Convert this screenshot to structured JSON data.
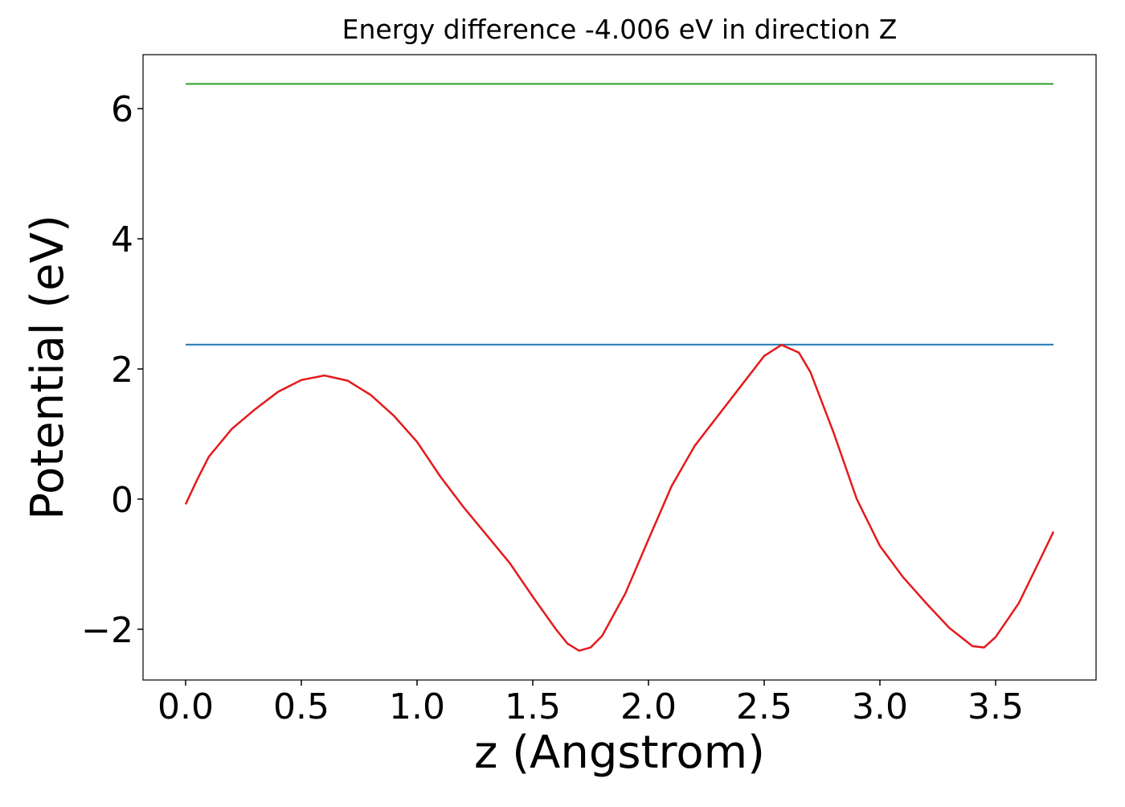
{
  "chart_data": {
    "type": "line",
    "title": "Energy difference -4.006 eV in direction Z",
    "x_label": "z (Angstrom)",
    "y_label": "Potential (eV)",
    "xlim": [
      -0.184,
      3.934
    ],
    "ylim": [
      -2.78,
      6.83
    ],
    "xticks": [
      {
        "value": 0,
        "label": "0.0"
      },
      0.5,
      {
        "value": 1,
        "label": "1.0"
      },
      1.5,
      {
        "value": 2,
        "label": "2.0"
      },
      2.5,
      {
        "value": 3,
        "label": "3.0"
      },
      3.5
    ],
    "yticks": [
      {
        "value": -2,
        "label": "−2"
      },
      0,
      2,
      4,
      6
    ],
    "series": [
      {
        "color": "#2ca02c",
        "x": [
          0,
          3.75
        ],
        "values": [
          6.38,
          6.38
        ]
      },
      {
        "color": "#1f77b4",
        "x": [
          0,
          3.75
        ],
        "values": [
          2.374,
          2.374
        ]
      },
      {
        "color": "#e41a1c",
        "x": [
          0,
          0.05,
          0.1,
          0.2,
          0.3,
          0.4,
          0.5,
          0.6,
          0.7,
          0.8,
          0.9,
          1.0,
          1.1,
          1.2,
          1.3,
          1.4,
          1.5,
          1.6,
          1.65,
          1.7,
          1.75,
          1.8,
          1.9,
          2.0,
          2.1,
          2.2,
          2.3,
          2.4,
          2.5,
          2.575,
          2.65,
          2.7,
          2.8,
          2.9,
          3.0,
          3.1,
          3.2,
          3.3,
          3.4,
          3.45,
          3.5,
          3.6,
          3.7,
          3.75
        ],
        "values": [
          -0.08,
          0.3,
          0.65,
          1.08,
          1.38,
          1.65,
          1.83,
          1.9,
          1.82,
          1.6,
          1.28,
          0.88,
          0.35,
          -0.12,
          -0.55,
          -0.98,
          -1.5,
          -2.0,
          -2.22,
          -2.33,
          -2.28,
          -2.1,
          -1.45,
          -0.62,
          0.2,
          0.82,
          1.28,
          1.74,
          2.2,
          2.37,
          2.25,
          1.95,
          1.02,
          0.0,
          -0.72,
          -1.2,
          -1.6,
          -1.98,
          -2.26,
          -2.28,
          -2.12,
          -1.6,
          -0.87,
          -0.5
        ]
      }
    ]
  }
}
